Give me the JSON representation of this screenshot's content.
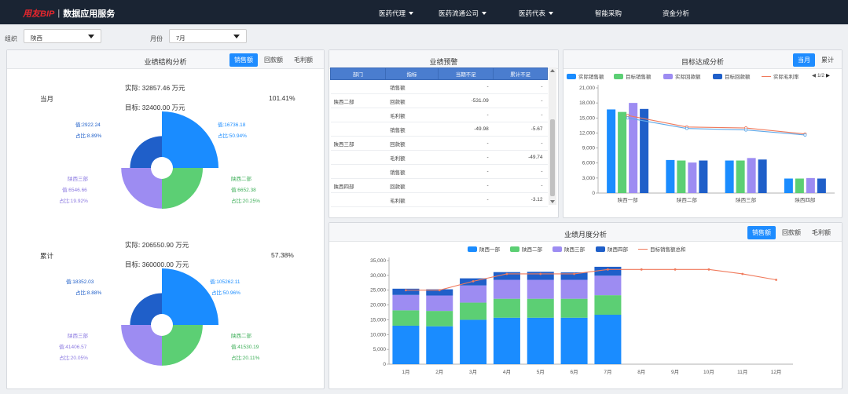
{
  "header": {
    "brand": "用友BIP",
    "separator": "|",
    "subtitle": "数据应用服务",
    "nav": [
      {
        "label": "医药代理",
        "dropdown": true
      },
      {
        "label": "医药流通公司",
        "dropdown": true
      },
      {
        "label": "医药代表",
        "dropdown": true
      },
      {
        "label": "智能采购",
        "dropdown": false
      },
      {
        "label": "资金分析",
        "dropdown": false
      }
    ]
  },
  "filters": {
    "org_label": "组织",
    "org_value": "陕西",
    "month_label": "月份",
    "month_value": "7月"
  },
  "structure": {
    "title": "业绩结构分析",
    "tabs": [
      "销售额",
      "回款额",
      "毛利额"
    ],
    "active_tab": "销售额",
    "current": {
      "period": "当月",
      "actual": "实际:  32857.46 万元",
      "target": "目标:  32400.00 万元",
      "rate": "101.41%",
      "labels": [
        {
          "v": "值:16736.18",
          "p": "占比:50.94%"
        },
        {
          "v": "值:6652.38",
          "p": "占比:20.25%"
        },
        {
          "v": "值:6546.66",
          "p": "占比:19.92%"
        },
        {
          "v": "值:2922.24",
          "p": "占比:8.89%"
        }
      ],
      "unit_labels": [
        "陕西二部",
        "陕西三部"
      ]
    },
    "cumulative": {
      "period": "累计",
      "actual": "实际:  206550.90 万元",
      "target": "目标:  360000.00 万元",
      "rate": "57.38%",
      "labels": [
        {
          "v": "值:105262.11",
          "p": "占比:50.96%"
        },
        {
          "v": "值:41530.19",
          "p": "占比:20.11%"
        },
        {
          "v": "值:41406.57",
          "p": "占比:20.05%"
        },
        {
          "v": "值:18352.03",
          "p": "占比:8.88%"
        }
      ],
      "unit_labels": [
        "陕西二部",
        "陕西三部"
      ]
    },
    "colors": [
      "#1a8cff",
      "#5ccf74",
      "#9d8cf2",
      "#1f5fc9"
    ]
  },
  "warning": {
    "title": "业绩预警",
    "columns": [
      "部门",
      "指标",
      "当期不足",
      "累计不足"
    ],
    "rows": [
      {
        "dept": "陕西二部",
        "items": [
          {
            "m": "销售额",
            "c": "-",
            "t": "-"
          },
          {
            "m": "回款额",
            "c": "-531.09",
            "t": "-"
          },
          {
            "m": "毛利额",
            "c": "-",
            "t": "-"
          }
        ]
      },
      {
        "dept": "陕西三部",
        "items": [
          {
            "m": "销售额",
            "c": "-49.98",
            "t": "-5.67"
          },
          {
            "m": "回款额",
            "c": "-",
            "t": "-"
          },
          {
            "m": "毛利额",
            "c": "-",
            "t": "-49.74"
          }
        ]
      },
      {
        "dept": "陕西四部",
        "items": [
          {
            "m": "销售额",
            "c": "-",
            "t": "-"
          },
          {
            "m": "回款额",
            "c": "-",
            "t": "-"
          },
          {
            "m": "毛利额",
            "c": "-",
            "t": "-3.12"
          }
        ]
      }
    ]
  },
  "target": {
    "title": "目标达成分析",
    "tabs": [
      "当月",
      "累计"
    ],
    "active_tab": "当月",
    "legend": [
      "实际销售额",
      "目标销售额",
      "实际回款额",
      "目标回款额",
      "实际毛利率"
    ],
    "page": "1/2"
  },
  "monthly": {
    "title": "业绩月度分析",
    "tabs": [
      "销售额",
      "回款额",
      "毛利额"
    ],
    "active_tab": "销售额",
    "legend": [
      "陕西一部",
      "陕西二部",
      "陕西三部",
      "陕西四部",
      "目标销售额总和"
    ]
  },
  "chart_data": [
    {
      "type": "bar",
      "title": "目标达成分析",
      "categories": [
        "陕西一部",
        "陕西二部",
        "陕西三部",
        "陕西四部"
      ],
      "ylim": [
        0,
        21000
      ],
      "yticks": [
        0,
        3000,
        6000,
        9000,
        12000,
        15000,
        18000,
        21000
      ],
      "series": [
        {
          "name": "实际销售额",
          "values": [
            16700,
            6600,
            6500,
            2900
          ],
          "color": "#1a8cff"
        },
        {
          "name": "目标销售额",
          "values": [
            16200,
            6500,
            6500,
            2900
          ],
          "color": "#5ccf74"
        },
        {
          "name": "实际回款额",
          "values": [
            18000,
            6100,
            7000,
            3000
          ],
          "color": "#9d8cf2"
        },
        {
          "name": "目标回款额",
          "values": [
            16800,
            6500,
            6700,
            2900
          ],
          "color": "#1f5fc9"
        }
      ],
      "lines": [
        {
          "name": "实际毛利率",
          "values": [
            15500,
            13200,
            13000,
            11800
          ],
          "color": "#f07a5c"
        },
        {
          "values": [
            15000,
            12900,
            12600,
            11600
          ],
          "color": "#5fa8e8"
        }
      ]
    },
    {
      "type": "bar",
      "title": "业绩月度分析",
      "stacked": true,
      "categories": [
        "1月",
        "2月",
        "3月",
        "4月",
        "5月",
        "6月",
        "7月",
        "8月",
        "9月",
        "10月",
        "11月",
        "12月"
      ],
      "ylim": [
        0,
        35000
      ],
      "yticks": [
        0,
        5000,
        10000,
        15000,
        20000,
        25000,
        30000,
        35000
      ],
      "series": [
        {
          "name": "陕西一部",
          "values": [
            13000,
            12800,
            15000,
            15700,
            15700,
            15700,
            16700,
            0,
            0,
            0,
            0,
            0
          ],
          "color": "#1a8cff"
        },
        {
          "name": "陕西二部",
          "values": [
            5200,
            5200,
            5800,
            6400,
            6400,
            6400,
            6600,
            0,
            0,
            0,
            0,
            0
          ],
          "color": "#5ccf74"
        },
        {
          "name": "陕西三部",
          "values": [
            5200,
            5200,
            5800,
            6400,
            6400,
            6400,
            6600,
            0,
            0,
            0,
            0,
            0
          ],
          "color": "#9d8cf2"
        },
        {
          "name": "陕西四部",
          "values": [
            2100,
            2100,
            2400,
            2600,
            2700,
            2500,
            3000,
            0,
            0,
            0,
            0,
            0
          ],
          "color": "#1f5fc9"
        }
      ],
      "line": {
        "name": "目标销售额总和",
        "values": [
          25000,
          25000,
          28000,
          30500,
          30500,
          30500,
          32000,
          32000,
          32000,
          32000,
          30500,
          28500
        ],
        "color": "#f07a5c"
      }
    }
  ]
}
